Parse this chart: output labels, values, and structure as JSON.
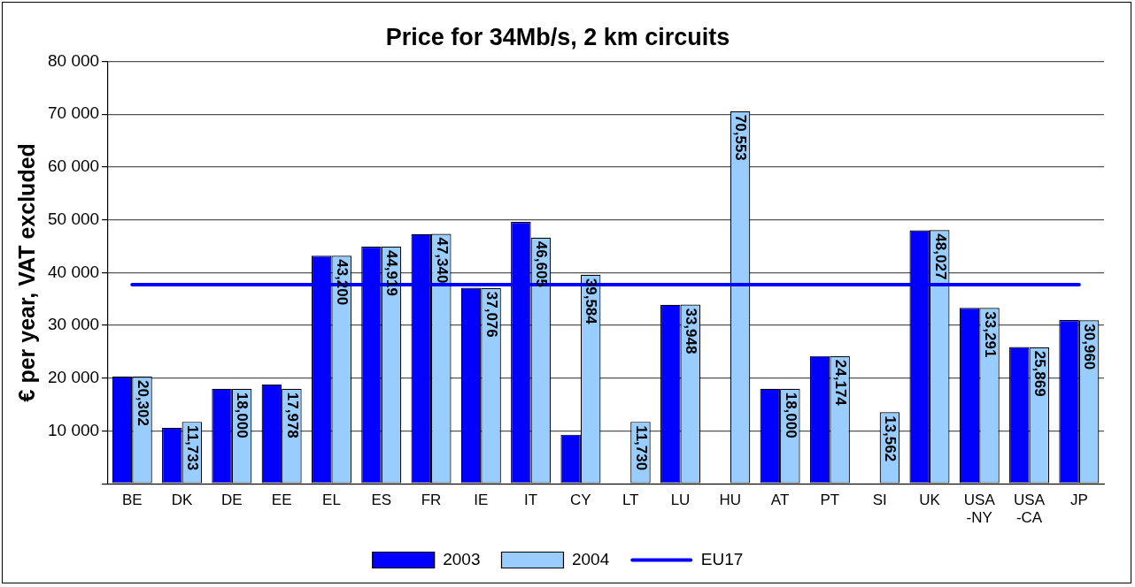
{
  "chart_data": {
    "type": "bar",
    "title": "Price for 34Mb/s, 2 km circuits",
    "ylabel": "€ per year, VAT excluded",
    "categories": [
      "BE",
      "DK",
      "DE",
      "EE",
      "EL",
      "ES",
      "FR",
      "IE",
      "IT",
      "CY",
      "LT",
      "LU",
      "HU",
      "AT",
      "PT",
      "SI",
      "UK",
      "USA\n-NY",
      "USA\n-CA",
      "JP"
    ],
    "series": [
      {
        "name": "2003",
        "color": "#0000ff",
        "values": [
          20300,
          10600,
          18000,
          18800,
          43200,
          44900,
          47300,
          37100,
          49600,
          9300,
          null,
          33900,
          null,
          18000,
          24200,
          null,
          48000,
          33300,
          25900,
          31000
        ]
      },
      {
        "name": "2004",
        "color": "#99ccff",
        "values": [
          20302,
          11733,
          18000,
          17978,
          43200,
          44919,
          47340,
          37076,
          46605,
          39584,
          11730,
          33948,
          70553,
          18000,
          24174,
          13562,
          48027,
          33291,
          25869,
          30960
        ],
        "value_labels": [
          "20,302",
          "11,733",
          "18,000",
          "17,978",
          "43,200",
          "44,919",
          "47,340",
          "37,076",
          "46,605",
          "39,584",
          "11,730",
          "33,948",
          "70,553",
          "18,000",
          "24,174",
          "13,562",
          "48,027",
          "33,291",
          "25,869",
          "30,960"
        ]
      },
      {
        "name": "EU17",
        "type": "line",
        "color": "#0000ff",
        "values": [
          37700,
          37700,
          37700,
          37700,
          37700,
          37700,
          37700,
          37700,
          37700,
          37700,
          37700,
          37700,
          37700,
          37700,
          37700,
          37700,
          37700,
          37700,
          37700,
          37700
        ]
      }
    ],
    "ylim": [
      0,
      80000
    ],
    "yticks": [
      {
        "value": 0,
        "label": null
      },
      {
        "value": 10000,
        "label": "10 000"
      },
      {
        "value": 20000,
        "label": "20 000"
      },
      {
        "value": 30000,
        "label": "30 000"
      },
      {
        "value": 40000,
        "label": "40 000"
      },
      {
        "value": 50000,
        "label": "50 000"
      },
      {
        "value": 60000,
        "label": "60 000"
      },
      {
        "value": 70000,
        "label": "70 000"
      },
      {
        "value": 80000,
        "label": "80 000"
      }
    ],
    "grid": "y",
    "legend": "bottom",
    "marker": "none",
    "line_style": "solid"
  }
}
